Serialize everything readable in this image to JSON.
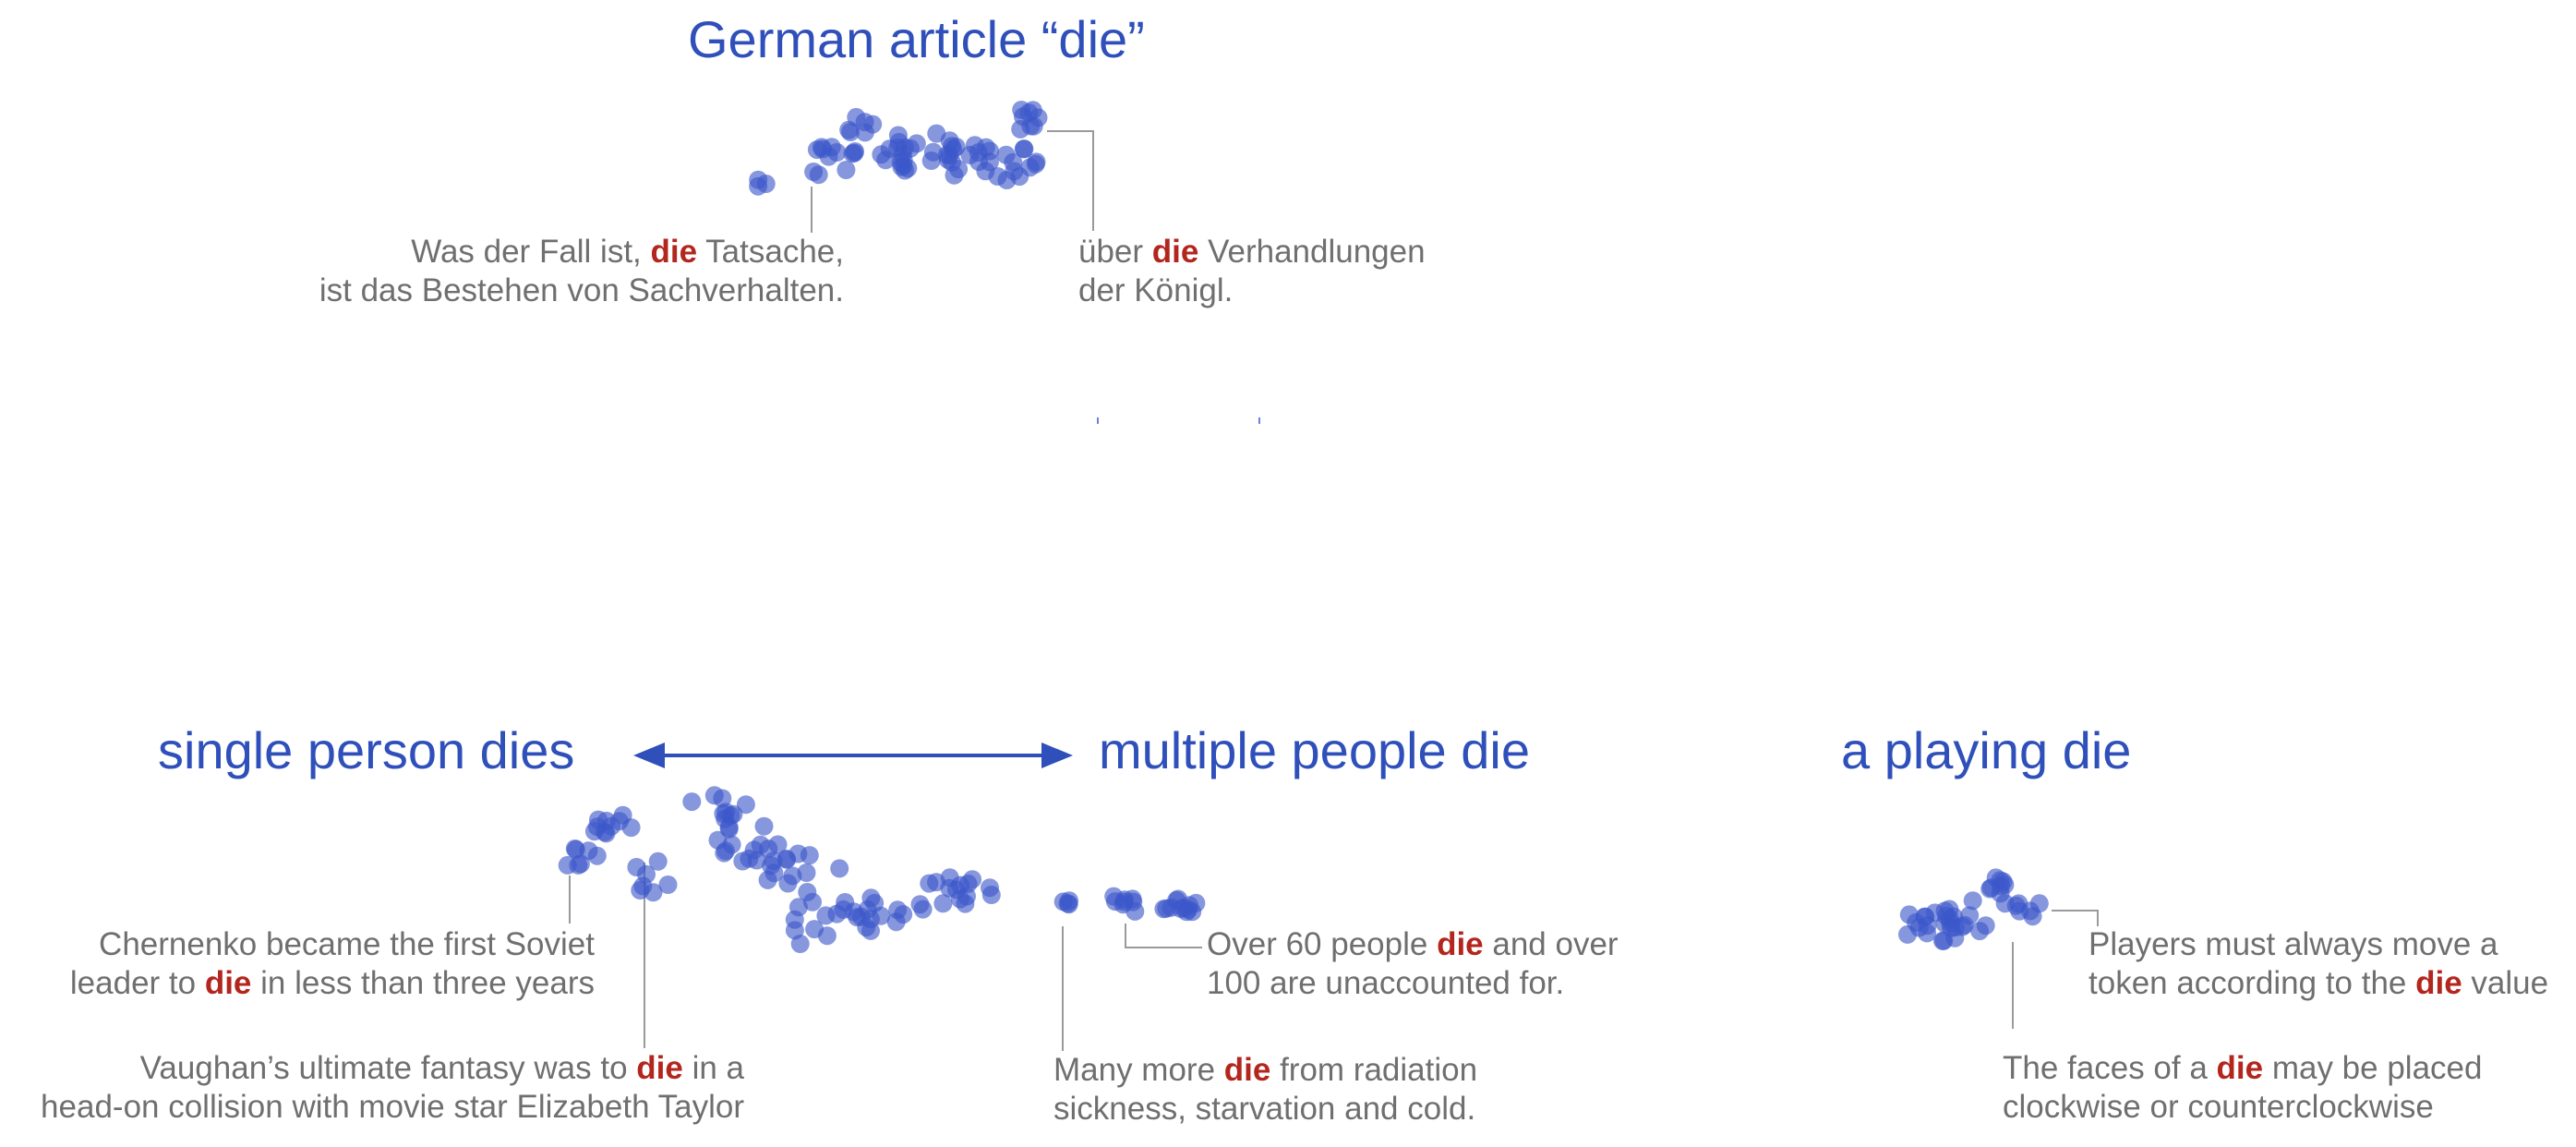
{
  "keyword_color": "#b3261e",
  "heading_color": "#2f4fba",
  "dot_color": "#3b57c9",
  "headings": {
    "german": "German article “die”",
    "single": "single person dies",
    "multiple": "multiple people die",
    "playing": "a playing die"
  },
  "captions": {
    "german_left": {
      "line1": {
        "before": "Was der Fall ist, ",
        "keyword": "die",
        "after": " Tatsache,"
      },
      "line2": {
        "text": "ist das Bestehen von Sachverhalten."
      }
    },
    "german_right": {
      "line1": {
        "before": "über ",
        "keyword": "die",
        "after": " Verhandlungen"
      },
      "line2": {
        "text": "der Königl."
      }
    },
    "chernenko": {
      "line1": {
        "text": "Chernenko became the first Soviet"
      },
      "line2": {
        "before": "leader to ",
        "keyword": "die",
        "after": " in less than three years"
      }
    },
    "vaughan": {
      "line1": {
        "before": "Vaughan’s ultimate fantasy was to ",
        "keyword": "die",
        "after": " in a"
      },
      "line2": {
        "text": "head-on collision with movie star Elizabeth Taylor"
      }
    },
    "over60": {
      "line1": {
        "before": "Over 60 people ",
        "keyword": "die",
        "after": " and over"
      },
      "line2": {
        "text": "100 are unaccounted for."
      }
    },
    "radiation": {
      "line1": {
        "before": "Many more ",
        "keyword": "die",
        "after": " from radiation"
      },
      "line2": {
        "text": "sickness, starvation and cold."
      }
    },
    "players": {
      "line1": {
        "text": "Players must always move a"
      },
      "line2": {
        "before": "token according to the ",
        "keyword": "die",
        "after": " value"
      }
    },
    "faces": {
      "line1": {
        "before": "The faces of a ",
        "keyword": "die",
        "after": " may be placed"
      },
      "line2": {
        "text": "clockwise or counterclockwise"
      }
    }
  }
}
